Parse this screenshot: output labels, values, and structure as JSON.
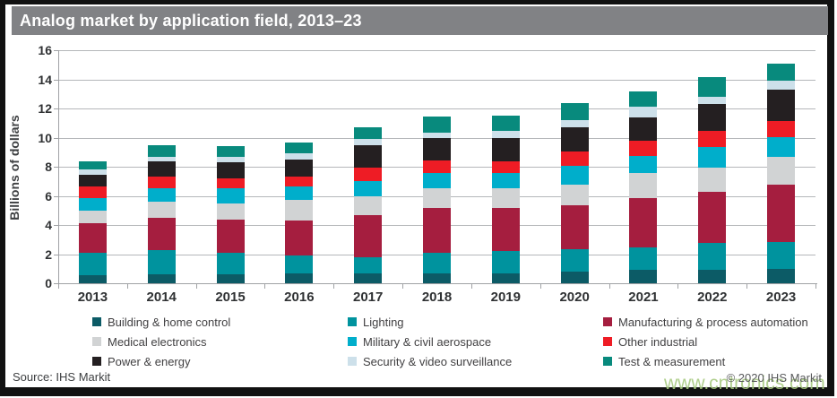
{
  "frame": {
    "title": "Analog market by application field, 2013–23",
    "source": "Source: IHS Markit",
    "copyright": "© 2020 IHS Markit",
    "watermark": "www.cntronics.com"
  },
  "chart_data": {
    "type": "bar",
    "stacked": true,
    "title": "Analog market by application field, 2013–23",
    "xlabel": "",
    "ylabel": "Billions of dollars",
    "ylim": [
      0,
      16
    ],
    "ytick_step": 2,
    "grid": true,
    "legend_position": "bottom",
    "categories": [
      "2013",
      "2014",
      "2015",
      "2016",
      "2017",
      "2018",
      "2019",
      "2020",
      "2021",
      "2022",
      "2023"
    ],
    "series": [
      {
        "name": "Building & home control",
        "color": "#0c5b66",
        "values": [
          0.55,
          0.6,
          0.6,
          0.7,
          0.7,
          0.7,
          0.7,
          0.8,
          0.9,
          0.95,
          1.0
        ]
      },
      {
        "name": "Lighting",
        "color": "#00939e",
        "values": [
          1.55,
          1.65,
          1.5,
          1.2,
          1.1,
          1.4,
          1.5,
          1.55,
          1.55,
          1.8,
          1.85
        ]
      },
      {
        "name": "Manufacturing & process automation",
        "color": "#a51e3f",
        "values": [
          2.0,
          2.25,
          2.3,
          2.4,
          2.9,
          3.05,
          2.95,
          3.0,
          3.4,
          3.5,
          3.95
        ]
      },
      {
        "name": "Medical electronics",
        "color": "#d1d3d4",
        "values": [
          0.9,
          1.1,
          1.1,
          1.4,
          1.3,
          1.35,
          1.35,
          1.45,
          1.75,
          1.7,
          1.85
        ]
      },
      {
        "name": "Military & civil aerospace",
        "color": "#00aecb",
        "values": [
          0.85,
          0.95,
          1.0,
          0.95,
          1.0,
          1.1,
          1.05,
          1.25,
          1.15,
          1.4,
          1.4
        ]
      },
      {
        "name": "Other industrial",
        "color": "#ee1c25",
        "values": [
          0.8,
          0.8,
          0.7,
          0.65,
          0.95,
          0.85,
          0.85,
          1.0,
          1.05,
          1.1,
          1.1
        ]
      },
      {
        "name": "Power & energy",
        "color": "#241f21",
        "values": [
          0.8,
          1.05,
          1.1,
          1.2,
          1.5,
          1.5,
          1.55,
          1.65,
          1.6,
          1.85,
          2.15
        ]
      },
      {
        "name": "Security & video surveillance",
        "color": "#cde0ea",
        "values": [
          0.35,
          0.3,
          0.4,
          0.45,
          0.45,
          0.4,
          0.5,
          0.5,
          0.7,
          0.5,
          0.6
        ]
      },
      {
        "name": "Test & measurement",
        "color": "#088a7d",
        "values": [
          0.6,
          0.75,
          0.7,
          0.7,
          0.8,
          1.1,
          1.05,
          1.15,
          1.1,
          1.35,
          1.2
        ]
      }
    ],
    "legend_rows": [
      [
        "Building & home control",
        "Lighting",
        "Manufacturing & process automation"
      ],
      [
        "Medical electronics",
        "Military & civil aerospace",
        "Other industrial"
      ],
      [
        "Power & energy",
        "Security & video surveillance",
        "Test & measurement"
      ]
    ]
  }
}
